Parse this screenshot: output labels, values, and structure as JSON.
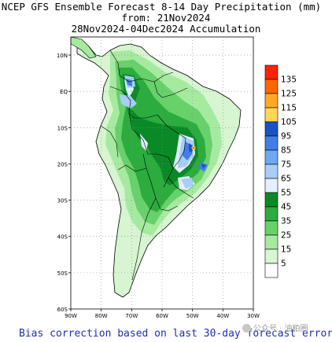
{
  "title_line1": "NCEP GFS Ensemble Forecast 8-14 Day Precipitation (mm)",
  "title_line2": "from: 21Nov2024",
  "title_line3": "28Nov2024-04Dec2024 Accumulation",
  "footer": "Bias correction based on last 30-day forecast error",
  "watermark": "公众号 · 油粕圈",
  "map": {
    "lat_labels": [
      "10N",
      "EQ",
      "10S",
      "20S",
      "30S",
      "40S",
      "50S",
      "60S"
    ],
    "lon_labels": [
      "80W",
      "70W",
      "60W",
      "50W",
      "40W",
      "30W"
    ],
    "lon_labels_all": [
      "90W",
      "80W",
      "70W",
      "60W",
      "50W",
      "40W",
      "30W"
    ]
  },
  "legend": {
    "levels": [
      "135",
      "125",
      "115",
      "105",
      "95",
      "85",
      "75",
      "65",
      "55",
      "45",
      "35",
      "25",
      "15",
      "5"
    ],
    "colors": [
      "#ff2200",
      "#ff6600",
      "#ffaa22",
      "#ffd755",
      "#1a52c8",
      "#3f7fe6",
      "#6fa8f0",
      "#a9cdf7",
      "#e2f1ff",
      "#0a8a26",
      "#2cac3e",
      "#68d16a",
      "#a6eaa0",
      "#d9f6d4",
      "#ffffff"
    ]
  }
}
